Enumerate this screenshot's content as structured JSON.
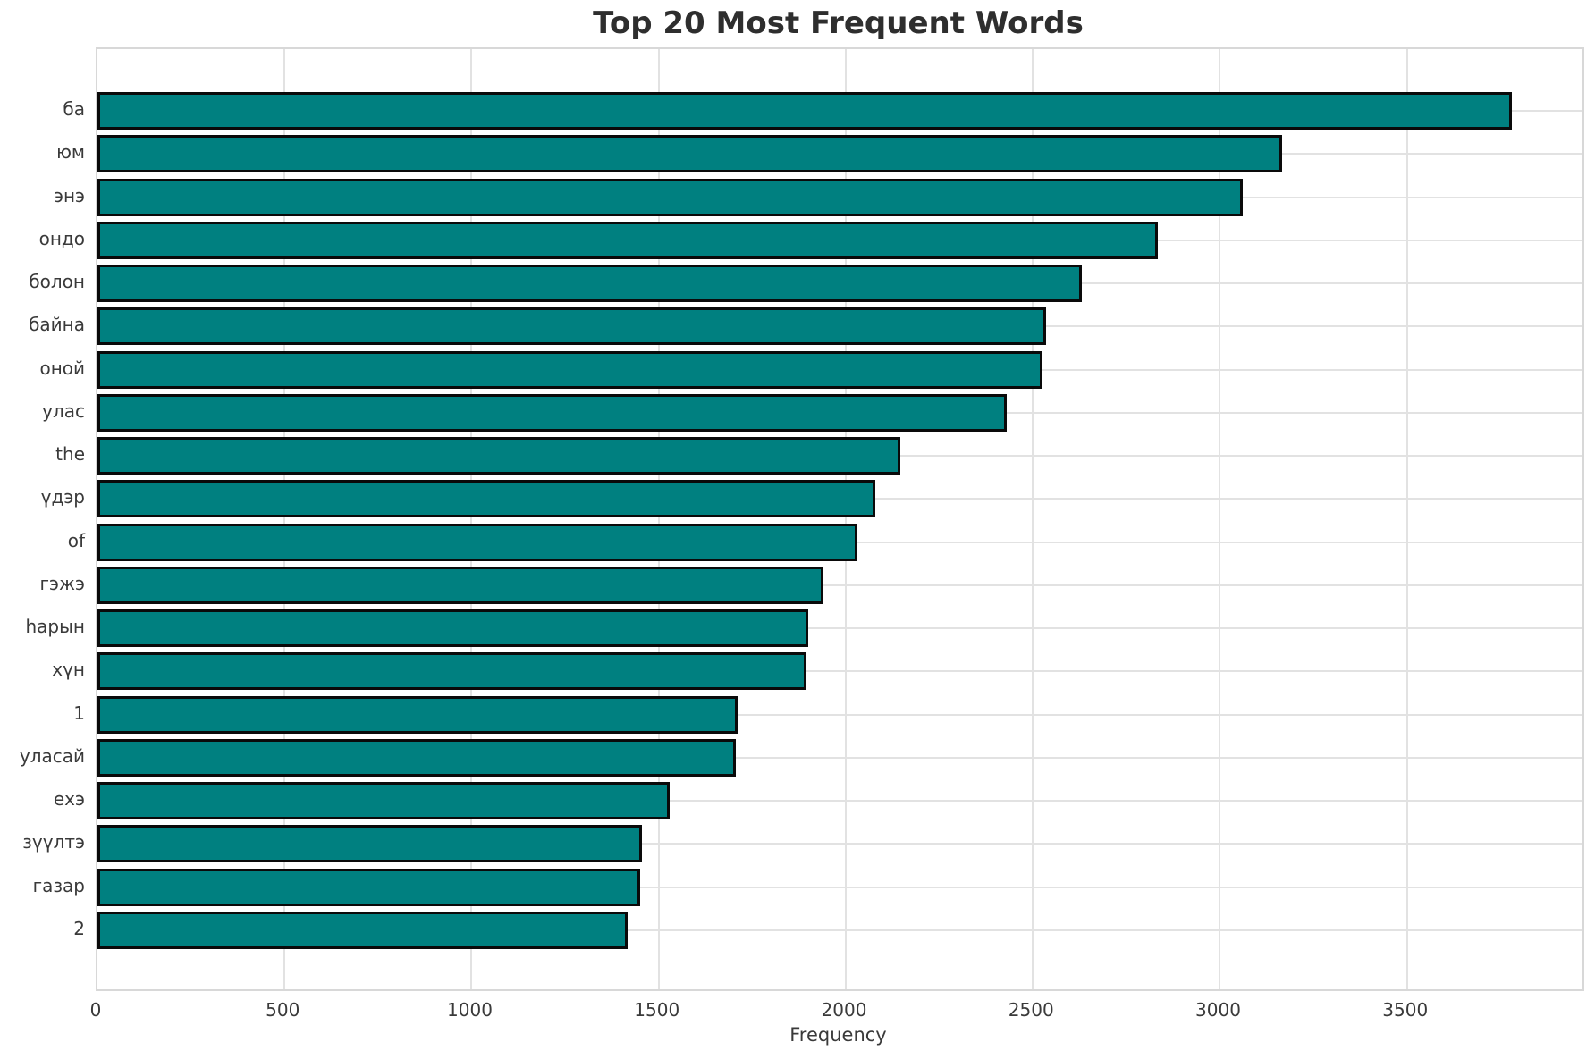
{
  "title": "Top 20 Most Frequent Words",
  "chart_data": {
    "type": "bar",
    "orientation": "horizontal",
    "title": "Top 20 Most Frequent Words",
    "xlabel": "Frequency",
    "ylabel": "",
    "categories": [
      "ба",
      "юм",
      "энэ",
      "ондо",
      "болон",
      "байна",
      "оной",
      "улас",
      "the",
      "үдэр",
      "of",
      "гэжэ",
      "һарын",
      "хүн",
      "1",
      "уласай",
      "ехэ",
      "зүүлтэ",
      "газар",
      "2"
    ],
    "values": [
      3780,
      3165,
      3060,
      2835,
      2630,
      2535,
      2525,
      2430,
      2145,
      2080,
      2030,
      1940,
      1900,
      1895,
      1710,
      1706,
      1530,
      1455,
      1450,
      1418
    ],
    "xlim": [
      0,
      3969
    ],
    "x_ticks": [
      0,
      500,
      1000,
      1500,
      2000,
      2500,
      3000,
      3500
    ],
    "grid": true,
    "legend": "none",
    "colors": {
      "bar_fill": "#008080",
      "bar_edge": "#0a0a0a",
      "grid_line": "#e2e2e2",
      "plot_border": "#d8d8d8",
      "title_text": "#2e2e2e",
      "tick_text": "#3a3a3a",
      "background": "#ffffff"
    }
  }
}
